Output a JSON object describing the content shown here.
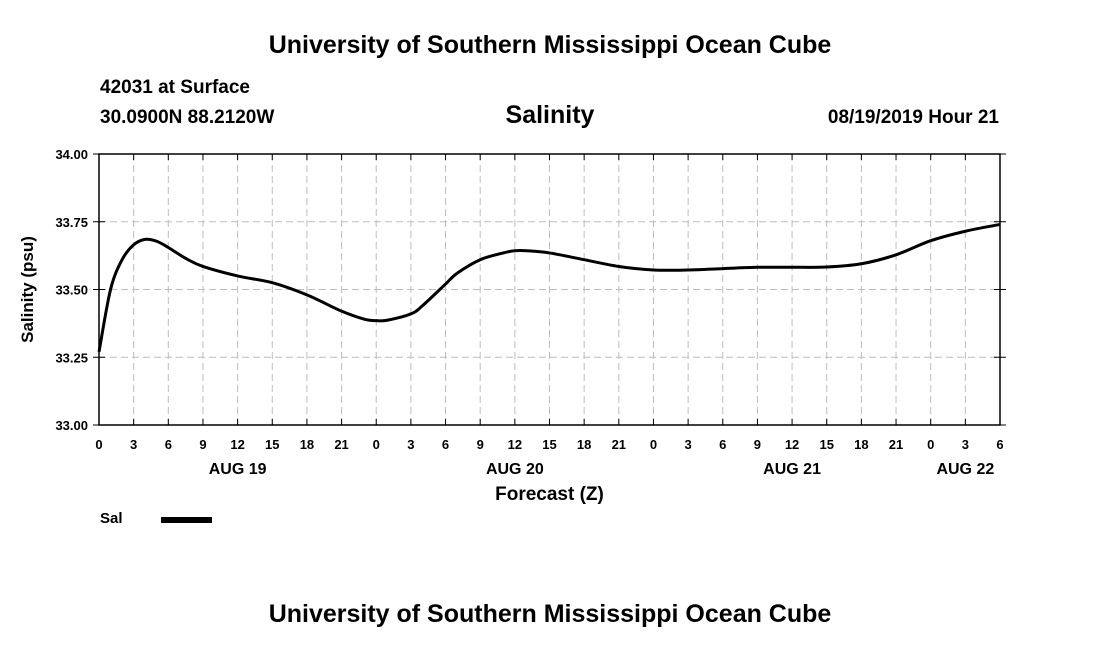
{
  "header": {
    "title": "University of Southern Mississippi Ocean Cube",
    "station": "42031 at Surface",
    "coordinates": "30.0900N 88.2120W",
    "datetime": "08/19/2019 Hour 21"
  },
  "footer": {
    "title": "University of Southern Mississippi Ocean Cube"
  },
  "legend": {
    "label": "Sal",
    "color": "#000000"
  },
  "chart_data": {
    "type": "line",
    "title": "Salinity",
    "xlabel": "Forecast (Z)",
    "ylabel": "Salinity (psu)",
    "ylim": [
      33.0,
      34.0
    ],
    "yticks": [
      "33.00",
      "33.25",
      "33.50",
      "33.75",
      "34.00"
    ],
    "xlim": [
      0,
      78
    ],
    "xtick_step_hours": 3,
    "xtick_labels": [
      "0",
      "3",
      "6",
      "9",
      "12",
      "15",
      "18",
      "21",
      "0",
      "3",
      "6",
      "9",
      "12",
      "15",
      "18",
      "21",
      "0",
      "3",
      "6",
      "9",
      "12",
      "15",
      "18",
      "21",
      "0",
      "3",
      "6"
    ],
    "date_labels": [
      {
        "hour": 12,
        "label": "AUG 19"
      },
      {
        "hour": 36,
        "label": "AUG 20"
      },
      {
        "hour": 60,
        "label": "AUG 21"
      },
      {
        "hour": 75,
        "label": "AUG 22"
      }
    ],
    "grid": true,
    "series": [
      {
        "name": "Sal",
        "color": "#000000",
        "x": [
          0,
          1,
          2,
          3,
          4,
          5,
          6,
          7.5,
          9,
          12,
          15,
          18,
          21,
          23,
          24,
          25,
          27,
          28,
          30,
          31,
          33,
          35,
          36,
          37,
          39,
          42,
          45,
          48,
          51,
          54,
          57,
          60,
          63,
          66,
          69,
          72,
          75,
          78
        ],
        "values": [
          33.27,
          33.5,
          33.61,
          33.665,
          33.685,
          33.678,
          33.655,
          33.615,
          33.585,
          33.55,
          33.525,
          33.48,
          33.42,
          33.39,
          33.385,
          33.387,
          33.41,
          33.44,
          33.52,
          33.56,
          33.61,
          33.635,
          33.643,
          33.643,
          33.635,
          33.61,
          33.585,
          33.572,
          33.572,
          33.577,
          33.582,
          33.582,
          33.583,
          33.595,
          33.628,
          33.68,
          33.715,
          33.74
        ]
      }
    ]
  }
}
